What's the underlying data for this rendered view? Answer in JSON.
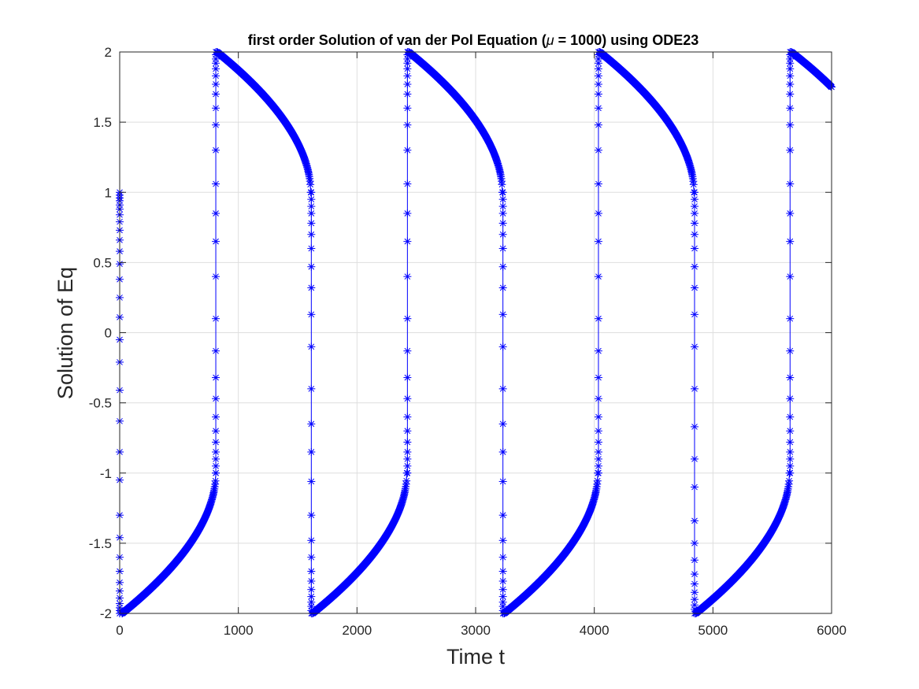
{
  "chart_data": {
    "type": "line",
    "title_parts": {
      "prefix": "first order Solution of van der Pol Equation (",
      "symbol": "μ",
      "suffix": " = 1000) using ODE23"
    },
    "xlabel": "Time t",
    "ylabel": "Solution of Eq",
    "xlim": [
      0,
      6000
    ],
    "ylim": [
      -2,
      2
    ],
    "xticks": [
      0,
      1000,
      2000,
      3000,
      4000,
      5000,
      6000
    ],
    "xtick_labels": [
      "0",
      "1000",
      "2000",
      "3000",
      "4000",
      "5000",
      "6000"
    ],
    "yticks": [
      -2,
      -1.5,
      -1,
      -0.5,
      0,
      0.5,
      1,
      1.5,
      2
    ],
    "ytick_labels": [
      "-2",
      "-1.5",
      "-1",
      "-0.5",
      "0",
      "0.5",
      "1",
      "1.5",
      "2"
    ],
    "grid": true,
    "marker": "asterisk",
    "line_color": "#0000ff",
    "series": [
      {
        "segments": [
          {
            "kind": "jump",
            "t": 0,
            "y_from": 1.0,
            "y_to": -2.0,
            "y_samples": [
              1.0,
              0.98,
              0.96,
              0.94,
              0.91,
              0.88,
              0.84,
              0.79,
              0.73,
              0.66,
              0.58,
              0.49,
              0.38,
              0.25,
              0.11,
              -0.05,
              -0.21,
              -0.41,
              -0.63,
              -0.85,
              -1.05,
              -1.3,
              -1.46,
              -1.6,
              -1.7,
              -1.78,
              -1.84,
              -1.89,
              -1.93,
              -1.96,
              -1.98,
              -2.0
            ]
          },
          {
            "kind": "slow",
            "t_start": 20,
            "t_end": 810,
            "y_start": -2.0,
            "y_end": -1.0
          },
          {
            "kind": "jump",
            "t": 810,
            "y_from": -1.0,
            "y_to": 2.0,
            "y_samples": [
              -1.0,
              -0.95,
              -0.9,
              -0.85,
              -0.78,
              -0.7,
              -0.6,
              -0.47,
              -0.32,
              -0.13,
              0.1,
              0.4,
              0.65,
              0.85,
              1.06,
              1.3,
              1.48,
              1.6,
              1.7,
              1.77,
              1.83,
              1.88,
              1.92,
              1.95,
              1.98,
              2.0
            ]
          },
          {
            "kind": "slow",
            "t_start": 820,
            "t_end": 1610,
            "y_start": 2.0,
            "y_end": 1.0
          },
          {
            "kind": "jump",
            "t": 1615,
            "y_from": 1.0,
            "y_to": -2.0,
            "y_samples": [
              1.0,
              0.95,
              0.9,
              0.85,
              0.78,
              0.7,
              0.6,
              0.47,
              0.32,
              0.13,
              -0.1,
              -0.4,
              -0.65,
              -0.85,
              -1.06,
              -1.3,
              -1.48,
              -1.6,
              -1.7,
              -1.77,
              -1.83,
              -1.88,
              -1.92,
              -1.95,
              -1.98,
              -2.0
            ]
          },
          {
            "kind": "slow",
            "t_start": 1625,
            "t_end": 2420,
            "y_start": -2.0,
            "y_end": -1.0
          },
          {
            "kind": "jump",
            "t": 2425,
            "y_from": -1.0,
            "y_to": 2.0,
            "y_samples": [
              -1.0,
              -0.95,
              -0.9,
              -0.85,
              -0.78,
              -0.7,
              -0.6,
              -0.47,
              -0.32,
              -0.13,
              0.1,
              0.4,
              0.65,
              0.85,
              1.06,
              1.3,
              1.48,
              1.6,
              1.7,
              1.77,
              1.83,
              1.88,
              1.92,
              1.95,
              1.98,
              2.0
            ]
          },
          {
            "kind": "slow",
            "t_start": 2435,
            "t_end": 3225,
            "y_start": 2.0,
            "y_end": 1.0
          },
          {
            "kind": "jump",
            "t": 3230,
            "y_from": 1.0,
            "y_to": -2.0,
            "y_samples": [
              1.0,
              0.95,
              0.9,
              0.85,
              0.78,
              0.7,
              0.6,
              0.47,
              0.32,
              0.13,
              -0.1,
              -0.4,
              -0.65,
              -0.85,
              -1.06,
              -1.3,
              -1.48,
              -1.6,
              -1.7,
              -1.77,
              -1.83,
              -1.88,
              -1.92,
              -1.95,
              -1.98,
              -2.0
            ]
          },
          {
            "kind": "slow",
            "t_start": 3240,
            "t_end": 4030,
            "y_start": -2.0,
            "y_end": -1.0
          },
          {
            "kind": "jump",
            "t": 4035,
            "y_from": -1.0,
            "y_to": 2.0,
            "y_samples": [
              -1.0,
              -0.95,
              -0.9,
              -0.85,
              -0.78,
              -0.7,
              -0.6,
              -0.47,
              -0.32,
              -0.13,
              0.1,
              0.4,
              0.65,
              0.85,
              1.06,
              1.3,
              1.48,
              1.6,
              1.7,
              1.77,
              1.83,
              1.88,
              1.92,
              1.95,
              1.98,
              2.0
            ]
          },
          {
            "kind": "slow",
            "t_start": 4045,
            "t_end": 4840,
            "y_start": 2.0,
            "y_end": 1.0
          },
          {
            "kind": "jump",
            "t": 4845,
            "y_from": 1.0,
            "y_to": -2.0,
            "y_samples": [
              1.0,
              0.95,
              0.9,
              0.85,
              0.78,
              0.7,
              0.6,
              0.47,
              0.32,
              0.13,
              -0.1,
              -0.4,
              -0.67,
              -0.9,
              -1.1,
              -1.34,
              -1.5,
              -1.62,
              -1.72,
              -1.79,
              -1.85,
              -1.9,
              -1.94,
              -1.97,
              -2.0
            ]
          },
          {
            "kind": "slow",
            "t_start": 4855,
            "t_end": 5645,
            "y_start": -2.0,
            "y_end": -1.0
          },
          {
            "kind": "jump",
            "t": 5650,
            "y_from": -1.0,
            "y_to": 2.0,
            "y_samples": [
              -1.0,
              -0.95,
              -0.9,
              -0.85,
              -0.78,
              -0.7,
              -0.6,
              -0.47,
              -0.32,
              -0.13,
              0.1,
              0.4,
              0.65,
              0.85,
              1.06,
              1.3,
              1.48,
              1.6,
              1.7,
              1.77,
              1.83,
              1.88,
              1.92,
              1.95,
              1.98,
              2.0
            ]
          },
          {
            "kind": "slow",
            "t_start": 5660,
            "t_end": 6000,
            "y_start": 2.0,
            "y_end": 1.75
          }
        ]
      }
    ]
  }
}
